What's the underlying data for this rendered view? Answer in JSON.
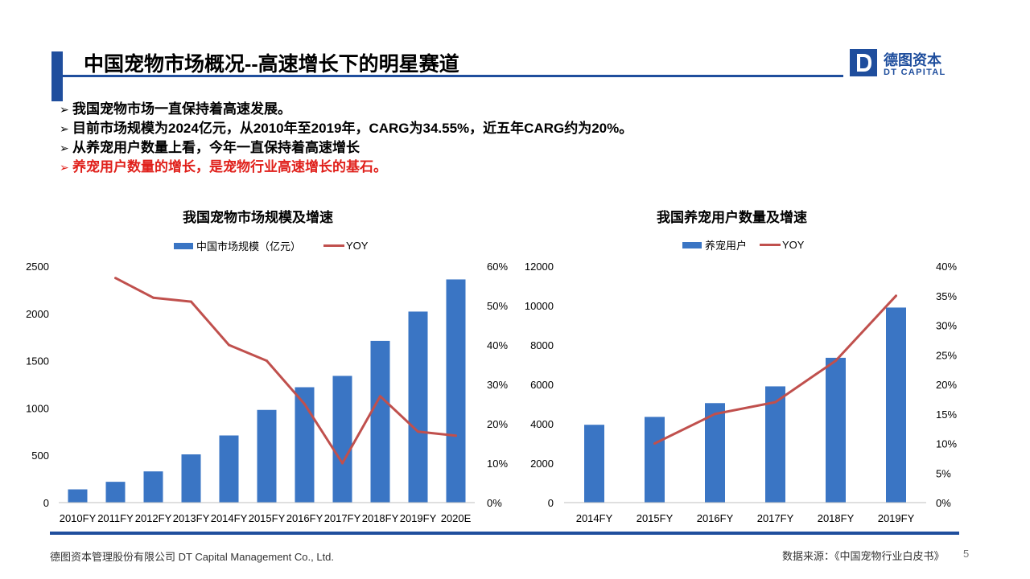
{
  "slide": {
    "title": "中国宠物市场概况--高速增长下的明星赛道",
    "logo_cn": "德图资本",
    "logo_en": "DT CAPITAL",
    "logo_letter": "D",
    "bullet_marker": "➢",
    "bullets": [
      "我国宠物市场一直保持着高速发展。",
      "目前市场规模为2024亿元，从2010年至2019年，CARG为34.55%，近五年CARG约为20%。",
      "从养宠用户数量上看，今年一直保持着高速增长",
      "养宠用户数量的增长，是宠物行业高速增长的基石。"
    ],
    "footer_left": "德图资本管理股份有限公司  DT Capital Management  Co., Ltd.",
    "footer_right": "数据来源：《中国宠物行业白皮书》",
    "page_number": "5",
    "colors": {
      "brand": "#1f4e9d",
      "bar": "#3a75c4",
      "line": "#c0504d",
      "highlight": "#e0201b"
    }
  },
  "chart_data": [
    {
      "type": "bar",
      "title": "我国宠物市场规模及增速",
      "categories": [
        "2010FY",
        "2011FY",
        "2012FY",
        "2013FY",
        "2014FY",
        "2015FY",
        "2016FY",
        "2017FY",
        "2018FY",
        "2019FY",
        "2020E"
      ],
      "series": [
        {
          "name": "中国市场规模（亿元）",
          "type": "bar",
          "axis": "left",
          "values": [
            140,
            220,
            330,
            510,
            710,
            980,
            1220,
            1340,
            1710,
            2020,
            2360
          ]
        },
        {
          "name": "YOY",
          "type": "line",
          "axis": "right",
          "values": [
            null,
            0.57,
            0.52,
            0.51,
            0.4,
            0.36,
            0.25,
            0.1,
            0.27,
            0.18,
            0.17
          ]
        }
      ],
      "ylim_left": [
        0,
        2500
      ],
      "yticks_left": [
        "0",
        "500",
        "1000",
        "1500",
        "2000",
        "2500"
      ],
      "ylim_right": [
        0,
        0.6
      ],
      "yticks_right": [
        "0%",
        "10%",
        "20%",
        "30%",
        "40%",
        "50%",
        "60%"
      ],
      "legend": "top"
    },
    {
      "type": "bar",
      "title": "我国养宠用户数量及增速",
      "categories": [
        "2014FY",
        "2015FY",
        "2016FY",
        "2017FY",
        "2018FY",
        "2019FY"
      ],
      "series": [
        {
          "name": "养宠用户",
          "type": "bar",
          "axis": "left",
          "values": [
            3950,
            4350,
            5050,
            5900,
            7350,
            9900
          ]
        },
        {
          "name": "YOY",
          "type": "line",
          "axis": "right",
          "values": [
            null,
            0.1,
            0.15,
            0.17,
            0.24,
            0.35
          ]
        }
      ],
      "ylim_left": [
        0,
        12000
      ],
      "yticks_left": [
        "0",
        "2000",
        "4000",
        "6000",
        "8000",
        "10000",
        "12000"
      ],
      "ylim_right": [
        0,
        0.4
      ],
      "yticks_right": [
        "0%",
        "5%",
        "10%",
        "15%",
        "20%",
        "25%",
        "30%",
        "35%",
        "40%"
      ],
      "legend": "top"
    }
  ]
}
